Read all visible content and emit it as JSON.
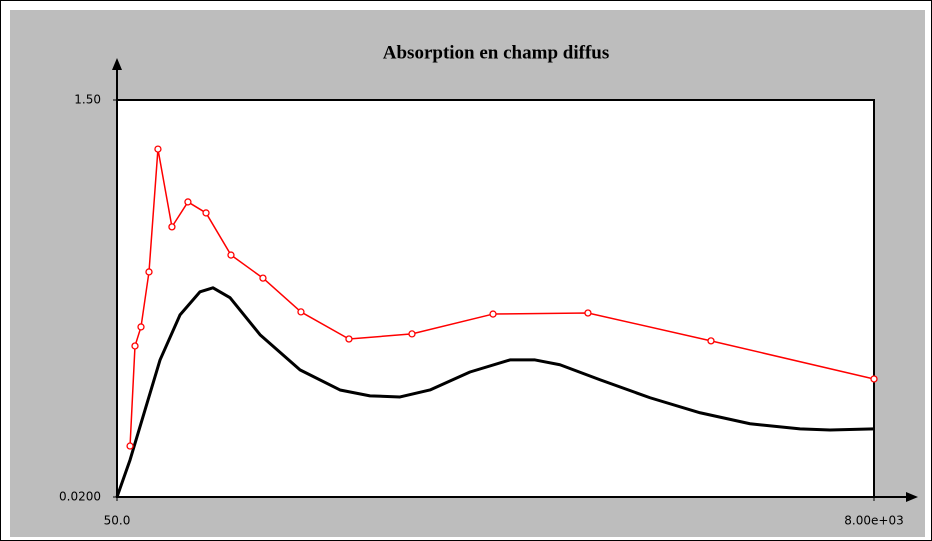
{
  "chart_data": {
    "type": "line",
    "title": "Absorption en champ diffus",
    "xlim": [
      50,
      8000
    ],
    "ylim": [
      0.02,
      1.5
    ],
    "xticks": [
      {
        "value": 50,
        "label": "50.0"
      },
      {
        "value": 8000,
        "label": "8.00e+03"
      }
    ],
    "yticks": [
      {
        "value": 0.02,
        "label": "0.0200"
      },
      {
        "value": 1.5,
        "label": "1.50"
      }
    ],
    "grid": false,
    "series": [
      {
        "color": "#000000",
        "markers": false,
        "x": [
          50,
          187,
          344,
          502,
          712,
          922,
          1058,
          1237,
          1552,
          1972,
          2392,
          2707,
          3022,
          3337,
          3757,
          4177,
          4440,
          4702,
          5122,
          5648,
          6173,
          6698,
          7223,
          7538,
          8000
        ],
        "values": [
          0.02,
          0.158,
          0.344,
          0.531,
          0.699,
          0.785,
          0.8,
          0.763,
          0.625,
          0.494,
          0.419,
          0.397,
          0.393,
          0.419,
          0.486,
          0.531,
          0.531,
          0.513,
          0.457,
          0.39,
          0.334,
          0.293,
          0.274,
          0.27,
          0.274
        ]
      },
      {
        "color": "#ff0000",
        "markers": true,
        "x": [
          187,
          239,
          302,
          386,
          480,
          627,
          795,
          985,
          1247,
          1583,
          1982,
          2486,
          3148,
          3999,
          4996,
          6288,
          8000
        ],
        "values": [
          0.21,
          0.583,
          0.654,
          0.859,
          1.317,
          1.027,
          1.12,
          1.079,
          0.922,
          0.836,
          0.71,
          0.609,
          0.628,
          0.702,
          0.706,
          0.602,
          0.46
        ]
      }
    ]
  }
}
